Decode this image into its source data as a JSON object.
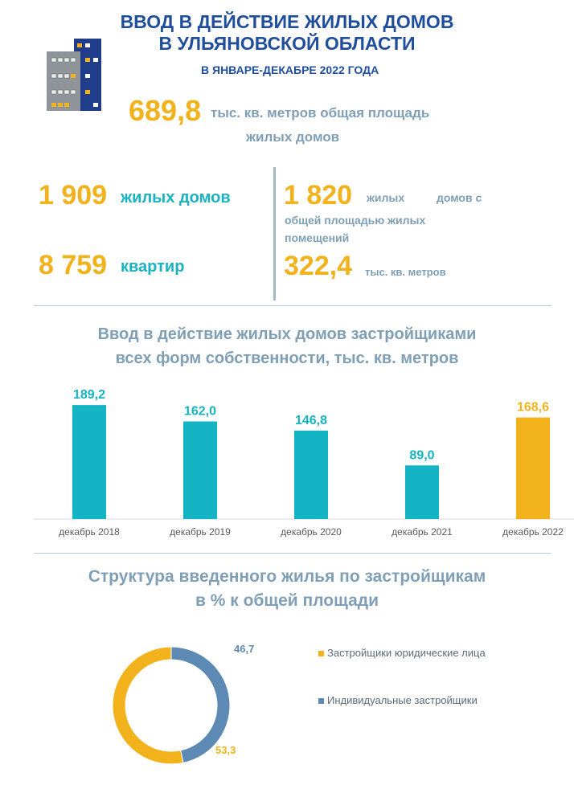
{
  "header": {
    "title_line1": "ВВОД В ДЕЙСТВИЕ ЖИЛЫХ ДОМОВ",
    "title_line2": "В УЛЬЯНОВСКОЙ ОБЛАСТИ",
    "subtitle": "В ЯНВАРЕ-ДЕКАБРЕ 2022 ГОДА"
  },
  "total": {
    "value": "689,8",
    "text_line1": "тыс. кв. метров общая площадь",
    "text_line2": "жилых домов"
  },
  "stats_left": {
    "houses_value": "1 909",
    "houses_label": "жилых домов",
    "flats_value": "8 759",
    "flats_label": "квартир"
  },
  "stats_right": {
    "houses_value": "1 820",
    "houses_label_a": "жилых",
    "houses_label_b": "домов с",
    "houses_label_line2": "общей площадью жилых",
    "houses_label_line3": "помещений",
    "area_value": "322,4",
    "area_label": "тыс. кв. метров"
  },
  "colors": {
    "accent_orange": "#f2b21b",
    "accent_teal": "#14b4c4",
    "navy": "#1f4e9c",
    "steel": "#6b93b6"
  },
  "bar_section": {
    "title_line1": "Ввод в действие жилых домов застройщиками",
    "title_line2": "всех форм собственности, тыс. кв. метров"
  },
  "pie_section": {
    "title_line1": "Структура введенного жилья по застройщикам",
    "title_line2": "в % к общей площади"
  },
  "chart_data": [
    {
      "type": "bar",
      "title": "Ввод в действие жилых домов застройщиками всех форм собственности, тыс. кв. метров",
      "categories": [
        "декабрь 2018",
        "декабрь 2019",
        "декабрь 2020",
        "декабрь 2021",
        "декабрь 2022"
      ],
      "values": [
        189.2,
        162.0,
        146.8,
        89.0,
        168.6
      ],
      "value_labels": [
        "189,2",
        "162,0",
        "146,8",
        "89,0",
        "168,6"
      ],
      "highlight_index": 4,
      "ylim": [
        0,
        200
      ],
      "grid": false,
      "xlabel": "",
      "ylabel": ""
    },
    {
      "type": "pie",
      "style": "donut",
      "title": "Структура введенного жилья по застройщикам в % к общей площади",
      "labels": [
        "Застройщики юридические лица",
        "Индивидуальные застройщики"
      ],
      "values": [
        53.3,
        46.7
      ],
      "value_labels": [
        "53,3",
        "46,7"
      ],
      "legend": "right"
    }
  ]
}
